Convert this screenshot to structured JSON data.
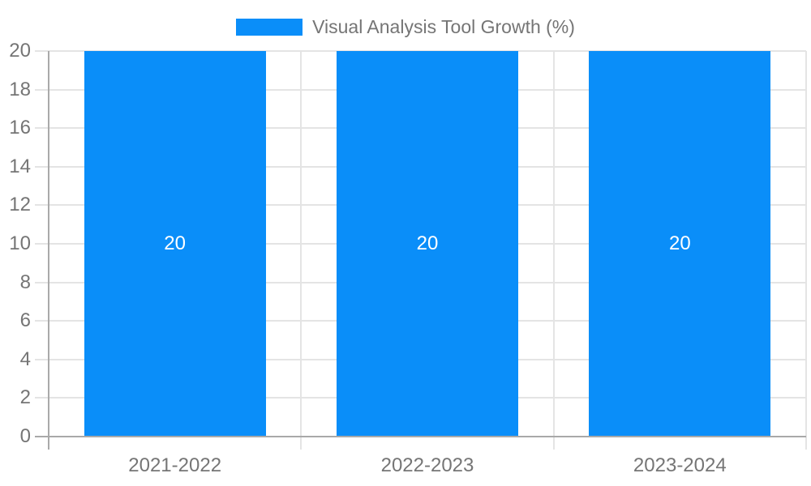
{
  "chart_data": {
    "type": "bar",
    "title": "Visual Analysis Tool Growth (%)",
    "categories": [
      "2021-2022",
      "2022-2023",
      "2023-2024"
    ],
    "series": [
      {
        "name": "Visual Analysis Tool Growth (%)",
        "values": [
          20,
          20,
          20
        ]
      }
    ],
    "value_labels": [
      "20",
      "20",
      "20"
    ],
    "xlabel": "",
    "ylabel": "",
    "ylim": [
      0,
      20
    ],
    "y_tick_step": 2,
    "y_ticks": [
      0,
      2,
      4,
      6,
      8,
      10,
      12,
      14,
      16,
      18,
      20
    ],
    "grid": true,
    "legend_position": "top-center",
    "colors": {
      "bar": "#0a8ef9",
      "value_label": "#ffffff",
      "axis_text": "#757575",
      "gridline": "#e4e4e4",
      "axis_line": "#a9a9a9",
      "background": "#ffffff"
    }
  }
}
